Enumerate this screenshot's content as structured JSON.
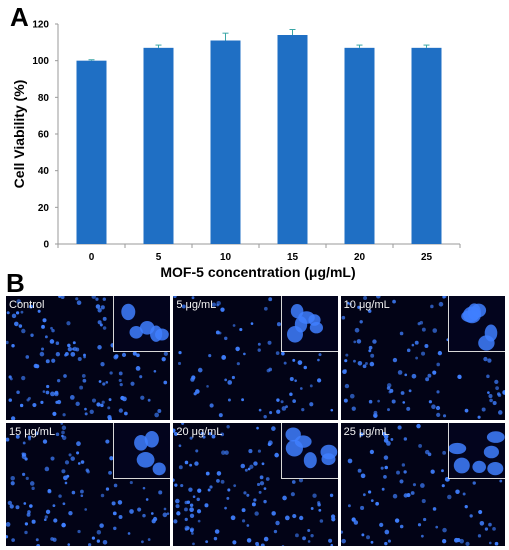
{
  "panels": {
    "a_label": "A",
    "b_label": "B"
  },
  "chart_data": {
    "type": "bar",
    "title": "",
    "xlabel": "MOF-5 concentration (μg/mL)",
    "ylabel": "Cell Viability (%)",
    "categories": [
      "0",
      "5",
      "10",
      "15",
      "20",
      "25"
    ],
    "values": [
      100,
      107,
      111,
      114,
      107,
      107
    ],
    "errors": [
      0.5,
      1.5,
      4,
      3,
      1.5,
      1.5
    ],
    "ylim": [
      0,
      120
    ],
    "yticks": [
      0,
      20,
      40,
      60,
      80,
      100,
      120
    ],
    "grid": false,
    "bar_color": "#1f6fc4",
    "error_color": "#3aa6a6"
  },
  "micrographs": {
    "labels": [
      "Control",
      "5 μg/mL",
      "10 μg/mL",
      "15 μg/mL",
      "20 μg/mL",
      "25 μg/mL"
    ],
    "nucleus_color": "#3f7fff",
    "background_color": "#020316"
  }
}
